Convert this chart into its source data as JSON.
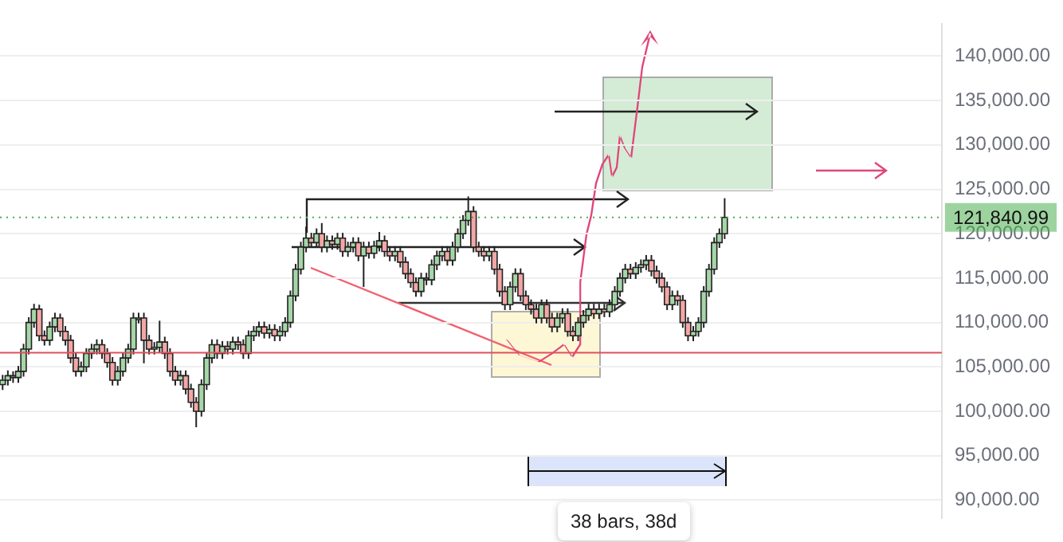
{
  "chart_data": {
    "type": "candlestick",
    "categories": [
      null,
      null,
      null,
      null,
      null,
      null,
      null,
      null,
      null,
      null,
      null,
      null,
      null,
      null,
      null,
      null,
      null,
      null,
      null,
      null,
      null,
      null,
      null,
      null,
      null,
      null,
      null,
      null,
      null,
      null,
      null,
      null,
      null,
      null,
      null,
      null,
      null,
      null,
      null,
      null,
      null,
      null,
      null,
      null,
      null,
      null,
      null,
      null,
      null,
      null,
      null,
      null,
      null,
      null,
      null,
      null,
      null,
      null,
      null,
      null,
      null,
      null,
      null,
      null,
      null,
      null,
      null,
      null,
      null,
      null,
      null,
      null,
      null,
      null,
      null,
      null,
      null,
      null,
      null,
      null,
      null,
      null,
      null,
      null,
      null,
      null,
      null,
      null,
      null,
      null,
      null,
      null,
      null,
      null,
      null,
      null,
      null,
      null,
      null,
      null,
      null,
      null,
      null,
      null,
      null,
      null,
      null,
      null,
      null,
      null,
      null,
      null,
      null,
      null,
      null,
      null,
      null,
      null,
      null,
      null,
      null,
      null,
      null,
      null,
      null,
      null,
      null,
      null,
      null,
      null,
      null,
      null,
      null,
      null,
      null,
      null,
      null,
      null,
      null,
      null,
      null,
      null,
      null,
      null,
      null,
      null,
      null,
      null,
      null,
      null,
      null,
      null,
      null,
      null,
      null,
      null,
      null,
      null,
      null,
      null,
      null,
      null,
      null,
      null,
      null,
      null,
      null,
      null,
      null,
      null,
      null,
      null,
      null,
      null,
      null,
      null,
      null,
      null,
      null,
      null
    ],
    "ohlc": [
      [
        103000,
        104100,
        102400,
        103500
      ],
      [
        103500,
        104600,
        102900,
        104000
      ],
      [
        104000,
        104500,
        103200,
        103800
      ],
      [
        103800,
        105100,
        103200,
        104500
      ],
      [
        104500,
        107600,
        103900,
        107000
      ],
      [
        107000,
        110600,
        106400,
        110000
      ],
      [
        110000,
        112100,
        109400,
        111500
      ],
      [
        111500,
        112000,
        107900,
        108500
      ],
      [
        108500,
        109100,
        107400,
        108000
      ],
      [
        108000,
        110100,
        107400,
        109500
      ],
      [
        109500,
        111100,
        108900,
        110500
      ],
      [
        110500,
        111000,
        108400,
        109000
      ],
      [
        109000,
        109600,
        107400,
        108000
      ],
      [
        108000,
        108600,
        105400,
        106000
      ],
      [
        106000,
        106600,
        103900,
        104500
      ],
      [
        104500,
        105600,
        103900,
        105000
      ],
      [
        105000,
        107100,
        104400,
        106500
      ],
      [
        106500,
        107600,
        105900,
        107000
      ],
      [
        107000,
        108100,
        106400,
        107500
      ],
      [
        107500,
        108100,
        105900,
        106500
      ],
      [
        106500,
        107100,
        104900,
        105500
      ],
      [
        105500,
        106100,
        102900,
        103500
      ],
      [
        103500,
        105100,
        102900,
        104500
      ],
      [
        104500,
        106600,
        103900,
        106000
      ],
      [
        106000,
        107600,
        105400,
        107000
      ],
      [
        107000,
        111100,
        106400,
        110500
      ],
      [
        110500,
        111100,
        109900,
        110500
      ],
      [
        110500,
        111100,
        105400,
        108000
      ],
      [
        108000,
        108600,
        106400,
        107000
      ],
      [
        107000,
        107800,
        106400,
        107200
      ],
      [
        107200,
        110200,
        106600,
        107800
      ],
      [
        107800,
        108400,
        105900,
        106500
      ],
      [
        106500,
        107100,
        103900,
        104500
      ],
      [
        104500,
        105100,
        102900,
        103500
      ],
      [
        103500,
        104600,
        102900,
        104000
      ],
      [
        104000,
        104600,
        101900,
        102500
      ],
      [
        102500,
        103100,
        100400,
        101000
      ],
      [
        101000,
        101600,
        98200,
        100000
      ],
      [
        100000,
        103600,
        99400,
        103000
      ],
      [
        103000,
        106600,
        102400,
        106000
      ],
      [
        106000,
        108100,
        105400,
        107500
      ],
      [
        107500,
        108100,
        105900,
        106500
      ],
      [
        106500,
        107900,
        105900,
        107300
      ],
      [
        107300,
        107900,
        106400,
        107000
      ],
      [
        107000,
        108400,
        106400,
        107800
      ],
      [
        107800,
        108400,
        106900,
        107500
      ],
      [
        107500,
        108100,
        105900,
        106500
      ],
      [
        106500,
        109100,
        105900,
        108500
      ],
      [
        108500,
        109600,
        107900,
        109000
      ],
      [
        109000,
        110100,
        108400,
        109500
      ],
      [
        109500,
        110100,
        108200,
        108800
      ],
      [
        108800,
        109800,
        108200,
        109200
      ],
      [
        109200,
        109800,
        107900,
        108500
      ],
      [
        108500,
        109600,
        107900,
        109000
      ],
      [
        109000,
        110600,
        108400,
        110000
      ],
      [
        110000,
        113600,
        109400,
        113000
      ],
      [
        113000,
        116600,
        112400,
        116000
      ],
      [
        116000,
        119100,
        115400,
        118500
      ],
      [
        118500,
        120800,
        117900,
        119500
      ],
      [
        119500,
        120100,
        118400,
        119000
      ],
      [
        119000,
        120600,
        118400,
        120000
      ],
      [
        120000,
        121200,
        117900,
        118500
      ],
      [
        118500,
        119800,
        117900,
        119200
      ],
      [
        119200,
        119800,
        118200,
        118800
      ],
      [
        118800,
        120100,
        118200,
        119500
      ],
      [
        119500,
        120100,
        117400,
        118000
      ],
      [
        118000,
        119100,
        117400,
        118500
      ],
      [
        118500,
        119600,
        117900,
        119000
      ],
      [
        119000,
        119600,
        116900,
        117500
      ],
      [
        117500,
        119100,
        114000,
        118500
      ],
      [
        118500,
        119100,
        117200,
        117800
      ],
      [
        117800,
        119200,
        117200,
        118600
      ],
      [
        118600,
        120200,
        118000,
        119200
      ],
      [
        119200,
        119800,
        117400,
        118000
      ],
      [
        118000,
        118600,
        116900,
        117500
      ],
      [
        117500,
        118600,
        116900,
        118000
      ],
      [
        118000,
        118600,
        116200,
        116800
      ],
      [
        116800,
        117400,
        114900,
        115500
      ],
      [
        115500,
        116100,
        113900,
        114500
      ],
      [
        114500,
        115100,
        112900,
        113500
      ],
      [
        113500,
        115600,
        112900,
        115000
      ],
      [
        115000,
        115600,
        114200,
        114800
      ],
      [
        114800,
        117100,
        114200,
        116500
      ],
      [
        116500,
        118100,
        115900,
        117500
      ],
      [
        117500,
        118600,
        116900,
        118000
      ],
      [
        118000,
        118600,
        116400,
        117000
      ],
      [
        117000,
        119100,
        116400,
        118500
      ],
      [
        118500,
        120600,
        117900,
        120000
      ],
      [
        120000,
        122100,
        119400,
        121500
      ],
      [
        121500,
        124200,
        120900,
        122500
      ],
      [
        122500,
        123100,
        117900,
        118500
      ],
      [
        118500,
        119100,
        117400,
        118000
      ],
      [
        118000,
        118600,
        116900,
        117500
      ],
      [
        117500,
        118600,
        116900,
        118000
      ],
      [
        118000,
        118600,
        115400,
        116000
      ],
      [
        116000,
        116600,
        112900,
        113500
      ],
      [
        113500,
        114100,
        111400,
        112000
      ],
      [
        112000,
        114600,
        111400,
        114000
      ],
      [
        114000,
        116100,
        113400,
        115500
      ],
      [
        115500,
        116100,
        112400,
        113000
      ],
      [
        113000,
        113600,
        111400,
        112000
      ],
      [
        112000,
        112600,
        110900,
        111500
      ],
      [
        111500,
        112100,
        109900,
        110500
      ],
      [
        110500,
        112600,
        109900,
        112000
      ],
      [
        112000,
        112600,
        109900,
        110500
      ],
      [
        110500,
        111100,
        108900,
        109500
      ],
      [
        109500,
        111100,
        108900,
        110500
      ],
      [
        110500,
        111600,
        109900,
        111000
      ],
      [
        111000,
        111600,
        108400,
        109000
      ],
      [
        109000,
        109600,
        107900,
        108500
      ],
      [
        108500,
        110600,
        107900,
        110000
      ],
      [
        110000,
        111400,
        109400,
        110800
      ],
      [
        110800,
        112100,
        110200,
        111500
      ],
      [
        111500,
        112100,
        110400,
        111000
      ],
      [
        111000,
        112100,
        110400,
        111500
      ],
      [
        111500,
        112100,
        110600,
        111200
      ],
      [
        111200,
        112600,
        110600,
        112000
      ],
      [
        112000,
        114100,
        111400,
        113500
      ],
      [
        113500,
        115600,
        112900,
        115000
      ],
      [
        115000,
        116600,
        114400,
        116000
      ],
      [
        116000,
        116600,
        114900,
        115500
      ],
      [
        115500,
        116800,
        114900,
        116200
      ],
      [
        116200,
        117100,
        115600,
        116500
      ],
      [
        116500,
        117600,
        115900,
        117000
      ],
      [
        117000,
        117600,
        115200,
        115800
      ],
      [
        115800,
        116400,
        114400,
        115000
      ],
      [
        115000,
        115600,
        113400,
        114000
      ],
      [
        114000,
        114600,
        111400,
        112000
      ],
      [
        112000,
        113600,
        111400,
        113000
      ],
      [
        113000,
        113600,
        111900,
        112500
      ],
      [
        112500,
        113100,
        109400,
        110000
      ],
      [
        110000,
        110600,
        107900,
        108500
      ],
      [
        108500,
        109600,
        107900,
        109000
      ],
      [
        109000,
        110600,
        108400,
        110000
      ],
      [
        110000,
        114100,
        109400,
        113500
      ],
      [
        113500,
        116600,
        112900,
        116000
      ],
      [
        116000,
        119600,
        115400,
        119000
      ],
      [
        119000,
        120600,
        118400,
        120000
      ],
      [
        120000,
        124000,
        119400,
        121840.99
      ],
      null,
      null,
      null,
      null,
      null,
      null,
      null,
      null,
      null,
      null,
      null,
      null,
      null,
      null,
      null,
      null,
      null,
      null,
      null,
      null,
      null,
      null,
      null,
      null,
      null,
      null,
      null,
      null,
      null,
      null,
      null,
      null,
      null,
      null,
      null,
      null,
      null,
      null,
      null,
      null,
      null
    ],
    "color": "#222222",
    "colors": [
      "#a5d6a7",
      "#a5d6a7",
      "#f4a6a6",
      "#a5d6a7",
      "#a5d6a7",
      "#a5d6a7",
      "#a5d6a7",
      "#f4a6a6",
      "#f4a6a6",
      "#a5d6a7",
      "#a5d6a7",
      "#f4a6a6",
      "#f4a6a6",
      "#f4a6a6",
      "#f4a6a6",
      "#a5d6a7",
      "#a5d6a7",
      "#a5d6a7",
      "#a5d6a7",
      "#f4a6a6",
      "#f4a6a6",
      "#f4a6a6",
      "#a5d6a7",
      "#a5d6a7",
      "#a5d6a7",
      "#a5d6a7",
      "#a5d6a7",
      "#f4a6a6",
      "#f4a6a6",
      "#a5d6a7",
      "#a5d6a7",
      "#f4a6a6",
      "#f4a6a6",
      "#f4a6a6",
      "#a5d6a7",
      "#f4a6a6",
      "#f4a6a6",
      "#f4a6a6",
      "#a5d6a7",
      "#a5d6a7",
      "#a5d6a7",
      "#f4a6a6",
      "#a5d6a7",
      "#f4a6a6",
      "#a5d6a7",
      "#f4a6a6",
      "#f4a6a6",
      "#a5d6a7",
      "#a5d6a7",
      "#a5d6a7",
      "#f4a6a6",
      "#a5d6a7",
      "#f4a6a6",
      "#a5d6a7",
      "#a5d6a7",
      "#a5d6a7",
      "#a5d6a7",
      "#a5d6a7",
      "#a5d6a7",
      "#f4a6a6",
      "#a5d6a7",
      "#f4a6a6",
      "#a5d6a7",
      "#f4a6a6",
      "#a5d6a7",
      "#f4a6a6",
      "#a5d6a7",
      "#a5d6a7",
      "#f4a6a6",
      "#a5d6a7",
      "#f4a6a6",
      "#a5d6a7",
      "#a5d6a7",
      "#f4a6a6",
      "#f4a6a6",
      "#a5d6a7",
      "#f4a6a6",
      "#f4a6a6",
      "#f4a6a6",
      "#f4a6a6",
      "#a5d6a7",
      "#f4a6a6",
      "#a5d6a7",
      "#a5d6a7",
      "#a5d6a7",
      "#f4a6a6",
      "#a5d6a7",
      "#a5d6a7",
      "#a5d6a7",
      "#a5d6a7",
      "#f4a6a6",
      "#f4a6a6",
      "#f4a6a6",
      "#a5d6a7",
      "#f4a6a6",
      "#f4a6a6",
      "#f4a6a6",
      "#a5d6a7",
      "#a5d6a7",
      "#f4a6a6",
      "#f4a6a6",
      "#f4a6a6",
      "#f4a6a6",
      "#a5d6a7",
      "#f4a6a6",
      "#f4a6a6",
      "#a5d6a7",
      "#a5d6a7",
      "#f4a6a6",
      "#f4a6a6",
      "#a5d6a7",
      "#a5d6a7",
      "#a5d6a7",
      "#f4a6a6",
      "#a5d6a7",
      "#f4a6a6",
      "#a5d6a7",
      "#a5d6a7",
      "#a5d6a7",
      "#a5d6a7",
      "#f4a6a6",
      "#a5d6a7",
      "#a5d6a7",
      "#a5d6a7",
      "#f4a6a6",
      "#f4a6a6",
      "#f4a6a6",
      "#f4a6a6",
      "#a5d6a7",
      "#f4a6a6",
      "#f4a6a6",
      "#f4a6a6",
      "#a5d6a7",
      "#a5d6a7",
      "#a5d6a7",
      "#a5d6a7",
      "#a5d6a7",
      "#a5d6a7",
      "#a5d6a7",
      null,
      null,
      null,
      null,
      null,
      null,
      null,
      null,
      null,
      null,
      null,
      null,
      null,
      null,
      null,
      null,
      null,
      null,
      null,
      null,
      null,
      null,
      null,
      null,
      null,
      null,
      null,
      null,
      null,
      null,
      null,
      null,
      null,
      null,
      null,
      null,
      null,
      null,
      null,
      null,
      null
    ],
    "ylim": [
      88000,
      143600
    ],
    "yticks": [
      {
        "value": 90000,
        "label": "90,000.00"
      },
      {
        "value": 95000,
        "label": "95,000.00"
      },
      {
        "value": 100000,
        "label": "100,000.00"
      },
      {
        "value": 105000,
        "label": "105,000.00"
      },
      {
        "value": 110000,
        "label": "110,000.00"
      },
      {
        "value": 115000,
        "label": "115,000.00"
      },
      {
        "value": 120000,
        "label": "120,000.00"
      },
      {
        "value": 125000,
        "label": "125,000.00"
      },
      {
        "value": 130000,
        "label": "130,000.00"
      },
      {
        "value": 135000,
        "label": "135,000.00"
      },
      {
        "value": 140000,
        "label": "140,000.00"
      }
    ],
    "ref_lines": [
      {
        "axis": "y",
        "value": 121840.99,
        "label": "121,840.99",
        "color": "#4caf50",
        "line_style": "dotted"
      },
      {
        "axis": "y",
        "value": 106600,
        "color": "#e0505c"
      }
    ],
    "annotations": [
      "38 bars, 38d"
    ],
    "grid": "y",
    "tick_labels": "y"
  }
}
